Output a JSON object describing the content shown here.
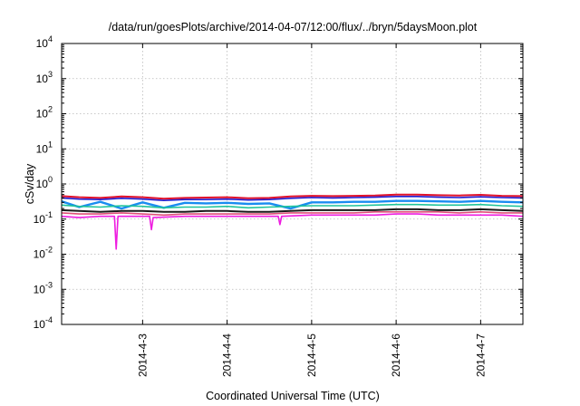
{
  "chart_data": {
    "type": "line",
    "title": "/data/run/goesPlots/archive/2014-04-07/12:00/flux/../bryn/5daysMoon.plot",
    "xlabel": "Coordinated Universal Time (UTC)",
    "ylabel": "cSv/day",
    "y_scale": "log",
    "ylim": [
      0.0001,
      10000
    ],
    "y_ticks": [
      {
        "value": 0.0001,
        "base": "10",
        "exp": "-4"
      },
      {
        "value": 0.001,
        "base": "10",
        "exp": "-3"
      },
      {
        "value": 0.01,
        "base": "10",
        "exp": "-2"
      },
      {
        "value": 0.1,
        "base": "10",
        "exp": "-1"
      },
      {
        "value": 1,
        "base": "10",
        "exp": "0"
      },
      {
        "value": 10,
        "base": "10",
        "exp": "1"
      },
      {
        "value": 100,
        "base": "10",
        "exp": "2"
      },
      {
        "value": 1000,
        "base": "10",
        "exp": "3"
      },
      {
        "value": 10000,
        "base": "10",
        "exp": "4"
      }
    ],
    "x_range": [
      "2014-04-02T01:00",
      "2014-04-07T12:00"
    ],
    "x_ticks": [
      {
        "value": "2014-04-03T00:00",
        "label": "2014-4-3"
      },
      {
        "value": "2014-04-04T00:00",
        "label": "2014-4-4"
      },
      {
        "value": "2014-04-05T00:00",
        "label": "2014-4-5"
      },
      {
        "value": "2014-04-06T00:00",
        "label": "2014-4-6"
      },
      {
        "value": "2014-04-07T00:00",
        "label": "2014-4-7"
      }
    ],
    "grid": true,
    "legend": "none",
    "series": [
      {
        "color": "#e0102a",
        "width": 2.0,
        "points": [
          [
            "2014-04-02T01:00",
            0.45
          ],
          [
            "2014-04-02T06:00",
            0.42
          ],
          [
            "2014-04-02T12:00",
            0.4
          ],
          [
            "2014-04-02T18:00",
            0.44
          ],
          [
            "2014-04-03T00:00",
            0.42
          ],
          [
            "2014-04-03T06:00",
            0.38
          ],
          [
            "2014-04-03T12:00",
            0.4
          ],
          [
            "2014-04-03T18:00",
            0.41
          ],
          [
            "2014-04-04T00:00",
            0.42
          ],
          [
            "2014-04-04T06:00",
            0.39
          ],
          [
            "2014-04-04T12:00",
            0.4
          ],
          [
            "2014-04-04T18:00",
            0.44
          ],
          [
            "2014-04-05T00:00",
            0.46
          ],
          [
            "2014-04-05T06:00",
            0.45
          ],
          [
            "2014-04-05T12:00",
            0.46
          ],
          [
            "2014-04-05T18:00",
            0.47
          ],
          [
            "2014-04-06T00:00",
            0.5
          ],
          [
            "2014-04-06T06:00",
            0.5
          ],
          [
            "2014-04-06T12:00",
            0.48
          ],
          [
            "2014-04-06T18:00",
            0.47
          ],
          [
            "2014-04-07T00:00",
            0.49
          ],
          [
            "2014-04-07T06:00",
            0.46
          ],
          [
            "2014-04-07T12:00",
            0.45
          ]
        ]
      },
      {
        "color": "#1f1ad0",
        "width": 1.6,
        "points": [
          [
            "2014-04-02T01:00",
            0.4
          ],
          [
            "2014-04-02T06:00",
            0.37
          ],
          [
            "2014-04-02T12:00",
            0.36
          ],
          [
            "2014-04-02T18:00",
            0.39
          ],
          [
            "2014-04-03T00:00",
            0.37
          ],
          [
            "2014-04-03T06:00",
            0.34
          ],
          [
            "2014-04-03T12:00",
            0.36
          ],
          [
            "2014-04-03T18:00",
            0.36
          ],
          [
            "2014-04-04T00:00",
            0.37
          ],
          [
            "2014-04-04T06:00",
            0.35
          ],
          [
            "2014-04-04T12:00",
            0.36
          ],
          [
            "2014-04-04T18:00",
            0.39
          ],
          [
            "2014-04-05T00:00",
            0.41
          ],
          [
            "2014-04-05T06:00",
            0.4
          ],
          [
            "2014-04-05T12:00",
            0.41
          ],
          [
            "2014-04-05T18:00",
            0.42
          ],
          [
            "2014-04-06T00:00",
            0.44
          ],
          [
            "2014-04-06T06:00",
            0.44
          ],
          [
            "2014-04-06T12:00",
            0.42
          ],
          [
            "2014-04-06T18:00",
            0.41
          ],
          [
            "2014-04-07T00:00",
            0.43
          ],
          [
            "2014-04-07T06:00",
            0.41
          ],
          [
            "2014-04-07T12:00",
            0.4
          ]
        ]
      },
      {
        "color": "#1a8cf0",
        "width": 2.4,
        "points": [
          [
            "2014-04-02T01:00",
            0.32
          ],
          [
            "2014-04-02T06:00",
            0.22
          ],
          [
            "2014-04-02T12:00",
            0.31
          ],
          [
            "2014-04-02T18:00",
            0.2
          ],
          [
            "2014-04-03T00:00",
            0.3
          ],
          [
            "2014-04-03T06:00",
            0.21
          ],
          [
            "2014-04-03T12:00",
            0.29
          ],
          [
            "2014-04-03T18:00",
            0.28
          ],
          [
            "2014-04-04T00:00",
            0.29
          ],
          [
            "2014-04-04T06:00",
            0.27
          ],
          [
            "2014-04-04T12:00",
            0.28
          ],
          [
            "2014-04-04T18:00",
            0.2
          ],
          [
            "2014-04-05T00:00",
            0.3
          ],
          [
            "2014-04-05T06:00",
            0.3
          ],
          [
            "2014-04-05T12:00",
            0.31
          ],
          [
            "2014-04-05T18:00",
            0.31
          ],
          [
            "2014-04-06T00:00",
            0.33
          ],
          [
            "2014-04-06T06:00",
            0.33
          ],
          [
            "2014-04-06T12:00",
            0.32
          ],
          [
            "2014-04-06T18:00",
            0.31
          ],
          [
            "2014-04-07T00:00",
            0.33
          ],
          [
            "2014-04-07T06:00",
            0.31
          ],
          [
            "2014-04-07T12:00",
            0.3
          ]
        ]
      },
      {
        "color": "#20c49a",
        "width": 1.6,
        "points": [
          [
            "2014-04-02T01:00",
            0.25
          ],
          [
            "2014-04-02T06:00",
            0.23
          ],
          [
            "2014-04-02T12:00",
            0.22
          ],
          [
            "2014-04-02T18:00",
            0.24
          ],
          [
            "2014-04-03T00:00",
            0.23
          ],
          [
            "2014-04-03T06:00",
            0.21
          ],
          [
            "2014-04-03T12:00",
            0.22
          ],
          [
            "2014-04-03T18:00",
            0.22
          ],
          [
            "2014-04-04T00:00",
            0.23
          ],
          [
            "2014-04-04T06:00",
            0.21
          ],
          [
            "2014-04-04T12:00",
            0.22
          ],
          [
            "2014-04-04T18:00",
            0.23
          ],
          [
            "2014-04-05T00:00",
            0.24
          ],
          [
            "2014-04-05T06:00",
            0.24
          ],
          [
            "2014-04-05T12:00",
            0.24
          ],
          [
            "2014-04-05T18:00",
            0.25
          ],
          [
            "2014-04-06T00:00",
            0.26
          ],
          [
            "2014-04-06T06:00",
            0.26
          ],
          [
            "2014-04-06T12:00",
            0.25
          ],
          [
            "2014-04-06T18:00",
            0.25
          ],
          [
            "2014-04-07T00:00",
            0.26
          ],
          [
            "2014-04-07T06:00",
            0.24
          ],
          [
            "2014-04-07T12:00",
            0.23
          ]
        ]
      },
      {
        "color": "#1a1a1a",
        "width": 2.0,
        "points": [
          [
            "2014-04-02T01:00",
            0.18
          ],
          [
            "2014-04-02T06:00",
            0.17
          ],
          [
            "2014-04-02T12:00",
            0.16
          ],
          [
            "2014-04-02T18:00",
            0.17
          ],
          [
            "2014-04-03T00:00",
            0.17
          ],
          [
            "2014-04-03T06:00",
            0.16
          ],
          [
            "2014-04-03T12:00",
            0.16
          ],
          [
            "2014-04-03T18:00",
            0.17
          ],
          [
            "2014-04-04T00:00",
            0.17
          ],
          [
            "2014-04-04T06:00",
            0.16
          ],
          [
            "2014-04-04T12:00",
            0.16
          ],
          [
            "2014-04-04T18:00",
            0.17
          ],
          [
            "2014-04-05T00:00",
            0.18
          ],
          [
            "2014-04-05T06:00",
            0.18
          ],
          [
            "2014-04-05T12:00",
            0.18
          ],
          [
            "2014-04-05T18:00",
            0.18
          ],
          [
            "2014-04-06T00:00",
            0.19
          ],
          [
            "2014-04-06T06:00",
            0.19
          ],
          [
            "2014-04-06T12:00",
            0.18
          ],
          [
            "2014-04-06T18:00",
            0.18
          ],
          [
            "2014-04-07T00:00",
            0.19
          ],
          [
            "2014-04-07T06:00",
            0.18
          ],
          [
            "2014-04-07T12:00",
            0.17
          ]
        ]
      },
      {
        "color": "#e0507a",
        "width": 1.6,
        "points": [
          [
            "2014-04-02T01:00",
            0.15
          ],
          [
            "2014-04-02T06:00",
            0.14
          ],
          [
            "2014-04-02T12:00",
            0.14
          ],
          [
            "2014-04-02T18:00",
            0.15
          ],
          [
            "2014-04-03T00:00",
            0.14
          ],
          [
            "2014-04-03T06:00",
            0.13
          ],
          [
            "2014-04-03T12:00",
            0.14
          ],
          [
            "2014-04-03T18:00",
            0.14
          ],
          [
            "2014-04-04T00:00",
            0.14
          ],
          [
            "2014-04-04T06:00",
            0.14
          ],
          [
            "2014-04-04T12:00",
            0.14
          ],
          [
            "2014-04-04T18:00",
            0.15
          ],
          [
            "2014-04-05T00:00",
            0.15
          ],
          [
            "2014-04-05T06:00",
            0.15
          ],
          [
            "2014-04-05T12:00",
            0.15
          ],
          [
            "2014-04-05T18:00",
            0.16
          ],
          [
            "2014-04-06T00:00",
            0.16
          ],
          [
            "2014-04-06T06:00",
            0.16
          ],
          [
            "2014-04-06T12:00",
            0.16
          ],
          [
            "2014-04-06T18:00",
            0.15
          ],
          [
            "2014-04-07T00:00",
            0.16
          ],
          [
            "2014-04-07T06:00",
            0.15
          ],
          [
            "2014-04-07T12:00",
            0.15
          ]
        ]
      },
      {
        "color": "#ee1ce0",
        "width": 1.6,
        "points": [
          [
            "2014-04-02T01:00",
            0.12
          ],
          [
            "2014-04-02T06:00",
            0.11
          ],
          [
            "2014-04-02T12:00",
            0.12
          ],
          [
            "2014-04-02T16:00",
            0.12
          ],
          [
            "2014-04-02T16:30",
            0.014
          ],
          [
            "2014-04-02T17:00",
            0.12
          ],
          [
            "2014-04-03T00:00",
            0.12
          ],
          [
            "2014-04-03T02:00",
            0.12
          ],
          [
            "2014-04-03T02:30",
            0.05
          ],
          [
            "2014-04-03T03:00",
            0.11
          ],
          [
            "2014-04-03T12:00",
            0.12
          ],
          [
            "2014-04-04T00:00",
            0.12
          ],
          [
            "2014-04-04T06:00",
            0.12
          ],
          [
            "2014-04-04T12:00",
            0.12
          ],
          [
            "2014-04-04T14:30",
            0.12
          ],
          [
            "2014-04-04T15:00",
            0.07
          ],
          [
            "2014-04-04T15:30",
            0.12
          ],
          [
            "2014-04-05T00:00",
            0.13
          ],
          [
            "2014-04-05T06:00",
            0.13
          ],
          [
            "2014-04-05T12:00",
            0.13
          ],
          [
            "2014-04-05T18:00",
            0.13
          ],
          [
            "2014-04-06T00:00",
            0.14
          ],
          [
            "2014-04-06T06:00",
            0.14
          ],
          [
            "2014-04-06T12:00",
            0.13
          ],
          [
            "2014-04-06T18:00",
            0.13
          ],
          [
            "2014-04-07T00:00",
            0.13
          ],
          [
            "2014-04-07T06:00",
            0.13
          ],
          [
            "2014-04-07T12:00",
            0.12
          ]
        ]
      }
    ]
  }
}
